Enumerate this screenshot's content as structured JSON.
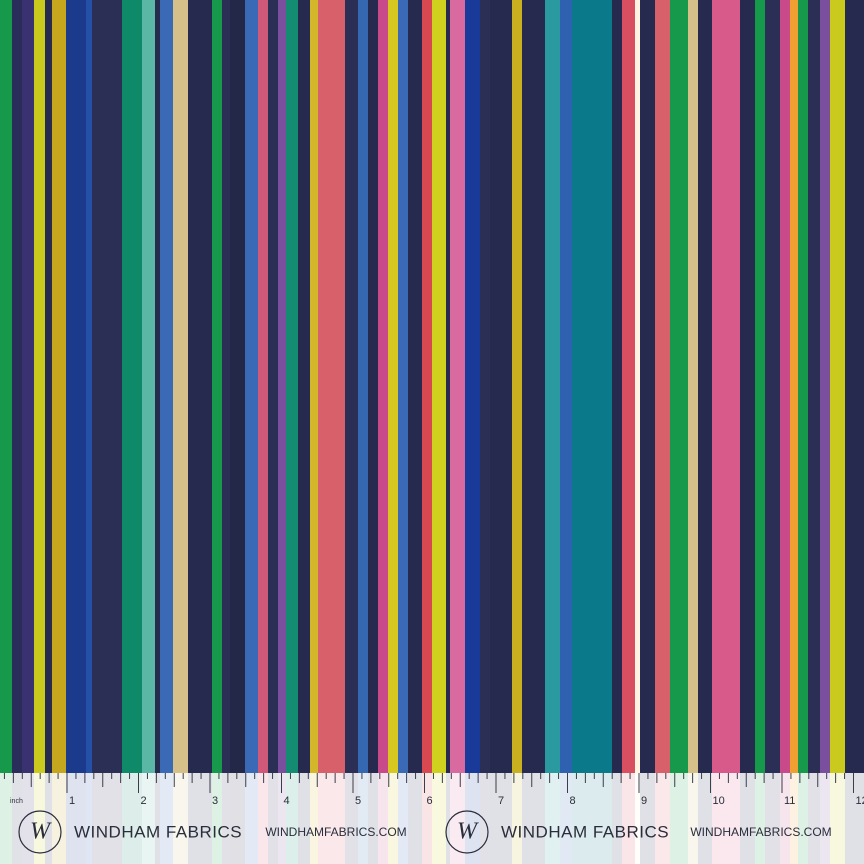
{
  "ruler": {
    "unit": "inch",
    "numbers": [
      "1",
      "2",
      "3",
      "4",
      "5",
      "6",
      "7",
      "8",
      "9",
      "10",
      "11",
      "12"
    ]
  },
  "branding": [
    {
      "logo": "W",
      "name": "WINDHAM FABRICS",
      "url": "WINDHAMFABRICS.COM"
    },
    {
      "logo": "W",
      "name": "WINDHAM FABRICS",
      "url": "WINDHAMFABRICS.COM"
    }
  ]
}
